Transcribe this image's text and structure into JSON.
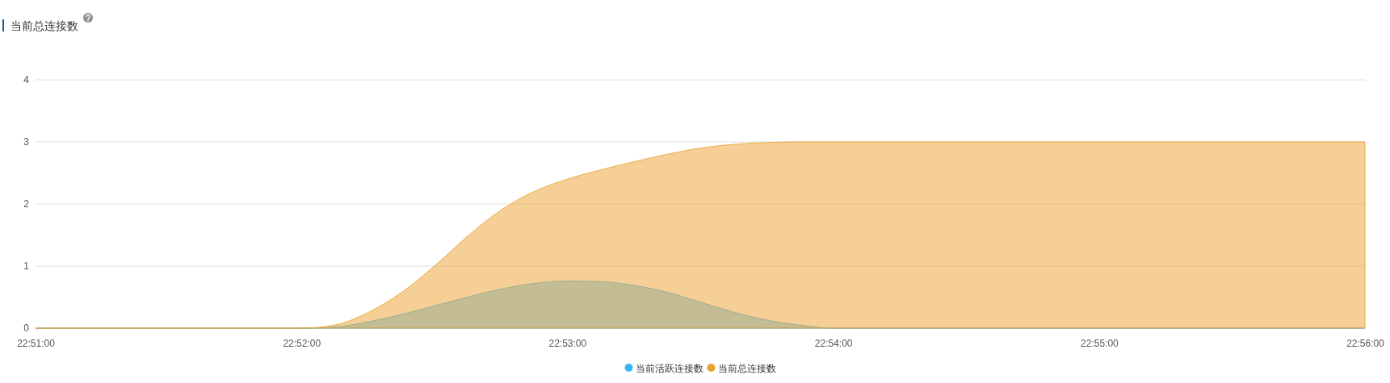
{
  "chart_data": {
    "type": "area",
    "title": "当前总连接数",
    "x": [
      22.85,
      22.86667,
      22.86875,
      22.87083,
      22.87292,
      22.875,
      22.87708,
      22.87917,
      22.88125,
      22.88333,
      22.88542,
      22.8875,
      22.88958,
      22.89167,
      22.89375,
      22.89583,
      22.89792,
      22.9,
      22.91667,
      22.93333
    ],
    "xlim": [
      22.85,
      22.93333
    ],
    "xticks": [
      {
        "value": 22.85,
        "label": "22:51:00"
      },
      {
        "value": 22.86667,
        "label": "22:52:00"
      },
      {
        "value": 22.88333,
        "label": "22:53:00"
      },
      {
        "value": 22.9,
        "label": "22:54:00"
      },
      {
        "value": 22.91667,
        "label": "22:55:00"
      },
      {
        "value": 22.93333,
        "label": "22:56:00"
      }
    ],
    "ylim": [
      0,
      4
    ],
    "yticks": [
      0,
      1,
      2,
      3,
      4
    ],
    "series": [
      {
        "name": "当前活跃连接数",
        "color": "#3bb4f2",
        "values": [
          0,
          0,
          0.02,
          0.1,
          0.22,
          0.36,
          0.5,
          0.63,
          0.72,
          0.76,
          0.75,
          0.69,
          0.58,
          0.42,
          0.26,
          0.13,
          0.05,
          0,
          0,
          0
        ]
      },
      {
        "name": "当前总连接数",
        "color": "#eb9f2d",
        "values": [
          0,
          0,
          0.05,
          0.25,
          0.57,
          1.0,
          1.48,
          1.9,
          2.2,
          2.4,
          2.55,
          2.68,
          2.8,
          2.9,
          2.96,
          2.99,
          3,
          3,
          3,
          3
        ]
      }
    ],
    "grid": "y",
    "legend": "bottom"
  }
}
